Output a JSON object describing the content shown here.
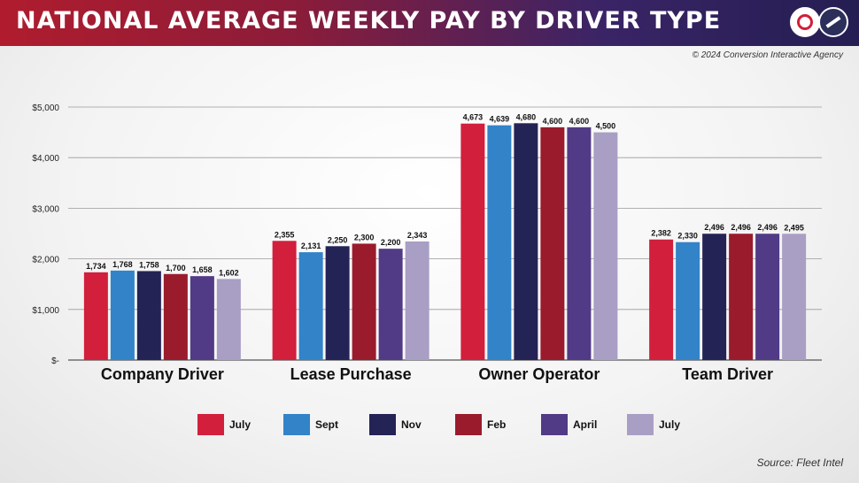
{
  "header": {
    "title": "NATIONAL AVERAGE WEEKLY PAY BY DRIVER TYPE"
  },
  "copyright": "© 2024 Conversion Interactive Agency",
  "source": "Source: Fleet Intel",
  "chart_data": {
    "type": "bar",
    "title": "NATIONAL AVERAGE WEEKLY PAY BY DRIVER TYPE",
    "xlabel": "",
    "ylabel": "",
    "categories": [
      "Company Driver",
      "Lease Purchase",
      "Owner Operator",
      "Team Driver"
    ],
    "ylim": [
      0,
      5000
    ],
    "yticks": [
      0,
      1000,
      2000,
      3000,
      4000,
      5000
    ],
    "ytick_labels": [
      "$-",
      "$1,000",
      "$2,000",
      "$3,000",
      "$4,000",
      "$5,000"
    ],
    "grid": true,
    "legend_position": "bottom",
    "series": [
      {
        "name": "July",
        "color": "#d21f3c",
        "values": [
          1734,
          2355,
          4673,
          2382
        ],
        "labels": [
          "1,734",
          "2,355",
          "4,673",
          "2,382"
        ]
      },
      {
        "name": "Sept",
        "color": "#3283c8",
        "values": [
          1768,
          2131,
          4639,
          2330
        ],
        "labels": [
          "1,768",
          "2,131",
          "4,639",
          "2,330"
        ]
      },
      {
        "name": "Nov",
        "color": "#242356",
        "values": [
          1758,
          2250,
          4680,
          2496
        ],
        "labels": [
          "1,758",
          "2,250",
          "4,680",
          "2,496"
        ]
      },
      {
        "name": "Feb",
        "color": "#9a1b2c",
        "values": [
          1700,
          2300,
          4600,
          2496
        ],
        "labels": [
          "1,700",
          "2,300",
          "4,600",
          "2,496"
        ]
      },
      {
        "name": "April",
        "color": "#513a86",
        "values": [
          1658,
          2200,
          4600,
          2496
        ],
        "labels": [
          "1,658",
          "2,200",
          "4,600",
          "2,496"
        ]
      },
      {
        "name": "July",
        "color": "#a99ec4",
        "values": [
          1602,
          2343,
          4500,
          2495
        ],
        "labels": [
          "1,602",
          "2,343",
          "4,500",
          "2,495"
        ]
      }
    ]
  }
}
